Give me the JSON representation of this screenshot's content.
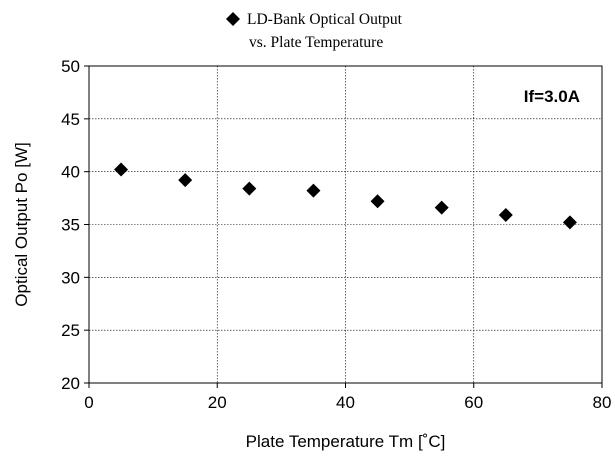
{
  "chart_data": {
    "type": "scatter",
    "legend": {
      "line1": "LD-Bank Optical Output",
      "line2": "vs. Plate Temperature",
      "placement": "top-center",
      "marker": "diamond"
    },
    "xlabel": "Plate Temperature Tm [˚C]",
    "ylabel": "Optical Output Po [W]",
    "xlim": [
      0,
      80
    ],
    "ylim": [
      20,
      50
    ],
    "xticks": [
      0,
      20,
      40,
      60,
      80
    ],
    "yticks": [
      20,
      25,
      30,
      35,
      40,
      45,
      50
    ],
    "grid": true,
    "grid_style": "dotted",
    "annotation": "If=3.0A",
    "series": [
      {
        "name": "LD-Bank Optical Output vs. Plate Temperature",
        "color": "#000000",
        "marker": "diamond",
        "x": [
          5,
          15,
          25,
          35,
          45,
          55,
          65,
          75
        ],
        "y": [
          40.2,
          39.2,
          38.4,
          38.2,
          37.2,
          36.6,
          35.9,
          35.2
        ]
      }
    ]
  }
}
